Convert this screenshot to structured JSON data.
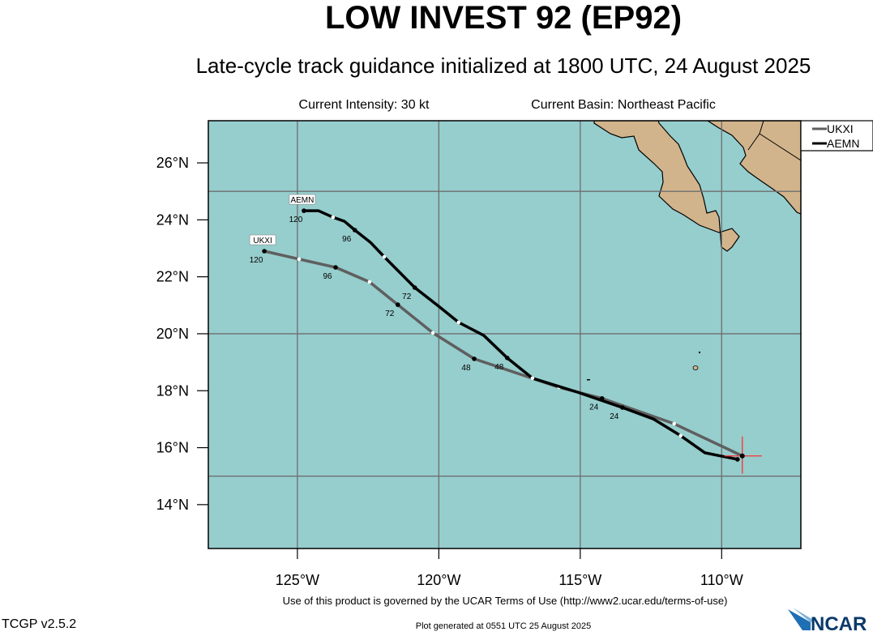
{
  "title": "LOW INVEST 92 (EP92)",
  "subtitle": "Late-cycle track guidance initialized at 1800 UTC, 24 August 2025",
  "intensity": "Current Intensity: 30 kt",
  "basin": "Current Basin: Northeast Pacific",
  "footer": {
    "terms": "Use of this product is governed by the UCAR Terms of Use (http://www2.ucar.edu/terms-of-use)",
    "version": "TCGP v2.5.2",
    "generated": "Plot generated at 0551 UTC   25 August 2025",
    "logo": "NCAR"
  },
  "colors": {
    "ocean": "#96cdcd",
    "land": "#d2b48c",
    "ukxi": "#5f5f5f",
    "aemn": "#000000",
    "storm": "#ff3030"
  },
  "chart_data": {
    "type": "line",
    "xlim": [
      -128.15,
      -107.2
    ],
    "ylim": [
      12.46,
      27.48
    ],
    "grid": true,
    "xticks": [
      {
        "value": -125,
        "label": "125°W"
      },
      {
        "value": -120,
        "label": "120°W"
      },
      {
        "value": -115,
        "label": "115°W"
      },
      {
        "value": -110,
        "label": "110°W"
      }
    ],
    "yticks": [
      {
        "value": 14,
        "label": "14°N"
      },
      {
        "value": 16,
        "label": "16°N"
      },
      {
        "value": 18,
        "label": "18°N"
      },
      {
        "value": 20,
        "label": "20°N"
      },
      {
        "value": 22,
        "label": "22°N"
      },
      {
        "value": 24,
        "label": "24°N"
      },
      {
        "value": 26,
        "label": "26°N"
      }
    ],
    "gridlines_lon": [
      -125,
      -120,
      -115,
      -110
    ],
    "gridlines_lat": [
      15,
      20,
      25
    ],
    "current_position": {
      "lon": -109.27,
      "lat": 15.71
    },
    "legend": {
      "placement": "outside-top-right",
      "entries": [
        "UKXI",
        "AEMN"
      ]
    },
    "series": [
      {
        "name": "UKXI",
        "color": "#5f5f5f",
        "points": [
          {
            "lon": -109.27,
            "lat": 15.71,
            "hour": 0
          },
          {
            "lon": -111.68,
            "lat": 16.84,
            "hour": 12
          },
          {
            "lon": -114.23,
            "lat": 17.73,
            "hour": 24,
            "label": "24"
          },
          {
            "lon": -115.75,
            "lat": 18.12,
            "hour": 36
          },
          {
            "lon": -118.75,
            "lat": 19.12,
            "hour": 48,
            "label": "48"
          },
          {
            "lon": -120.21,
            "lat": 20.03,
            "hour": 60
          },
          {
            "lon": -121.45,
            "lat": 21.02,
            "hour": 72,
            "label": "72"
          },
          {
            "lon": -122.45,
            "lat": 21.82,
            "hour": 84
          },
          {
            "lon": -123.65,
            "lat": 22.33,
            "hour": 96,
            "label": "96"
          },
          {
            "lon": -124.94,
            "lat": 22.62,
            "hour": 108
          },
          {
            "lon": -126.17,
            "lat": 22.9,
            "hour": 120,
            "label": "120"
          }
        ]
      },
      {
        "name": "AEMN",
        "color": "#000000",
        "points": [
          {
            "lon": -109.44,
            "lat": 15.59,
            "hour": 0
          },
          {
            "lon": -110.59,
            "lat": 15.82
          },
          {
            "lon": -111.45,
            "lat": 16.42,
            "hour": 12
          },
          {
            "lon": -112.42,
            "lat": 17.01
          },
          {
            "lon": -113.51,
            "lat": 17.41,
            "hour": 24,
            "label": "24"
          },
          {
            "lon": -115.1,
            "lat": 17.95
          },
          {
            "lon": -116.69,
            "lat": 18.44,
            "hour": 36
          },
          {
            "lon": -117.58,
            "lat": 19.15,
            "hour": 48,
            "label": "48"
          },
          {
            "lon": -118.41,
            "lat": 19.94
          },
          {
            "lon": -119.3,
            "lat": 20.4,
            "hour": 60
          },
          {
            "lon": -120.01,
            "lat": 20.97
          },
          {
            "lon": -120.85,
            "lat": 21.62,
            "hour": 72,
            "label": "72"
          },
          {
            "lon": -121.93,
            "lat": 22.7,
            "hour": 84
          },
          {
            "lon": -122.42,
            "lat": 23.21
          },
          {
            "lon": -122.97,
            "lat": 23.64,
            "hour": 96,
            "label": "96"
          },
          {
            "lon": -123.34,
            "lat": 23.95
          },
          {
            "lon": -123.74,
            "lat": 24.09,
            "hour": 108
          },
          {
            "lon": -124.26,
            "lat": 24.32
          },
          {
            "lon": -124.77,
            "lat": 24.32,
            "hour": 120,
            "label": "120"
          }
        ]
      }
    ]
  }
}
